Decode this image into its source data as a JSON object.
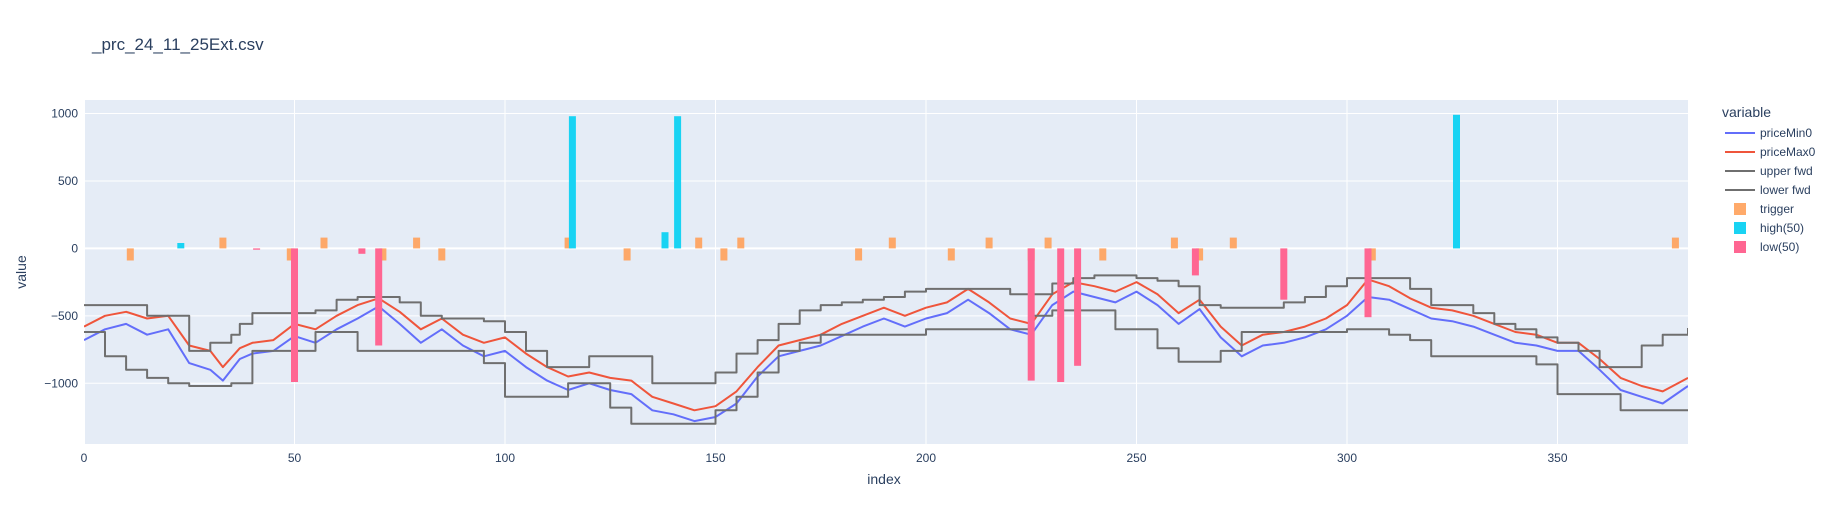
{
  "chart_data": {
    "type": "line",
    "title": "_prc_24_11_25Ext.csv",
    "xlabel": "index",
    "ylabel": "value",
    "xlim": [
      0,
      381
    ],
    "ylim": [
      -1450,
      1100
    ],
    "xticks": [
      0,
      50,
      100,
      150,
      200,
      250,
      300,
      350
    ],
    "yticks": [
      -1000,
      -500,
      0,
      500,
      1000
    ],
    "xtick_labels": [
      "0",
      "50",
      "100",
      "150",
      "200",
      "250",
      "300",
      "350"
    ],
    "ytick_labels": [
      "−1000",
      "−500",
      "0",
      "500",
      "1000"
    ],
    "grid": true,
    "legend_title": "variable",
    "legend_position": "right",
    "series": [
      {
        "name": "priceMin0",
        "kind": "line",
        "color": "#636efa",
        "x": [
          0,
          5,
          10,
          15,
          20,
          25,
          30,
          33,
          37,
          40,
          45,
          50,
          55,
          60,
          65,
          70,
          75,
          80,
          85,
          90,
          95,
          100,
          105,
          110,
          115,
          120,
          125,
          130,
          135,
          140,
          145,
          150,
          155,
          160,
          165,
          170,
          175,
          180,
          185,
          190,
          195,
          200,
          205,
          210,
          215,
          220,
          225,
          230,
          235,
          240,
          245,
          250,
          255,
          260,
          265,
          270,
          275,
          280,
          285,
          290,
          295,
          300,
          305,
          310,
          315,
          320,
          325,
          330,
          335,
          340,
          345,
          350,
          355,
          360,
          365,
          370,
          375,
          381
        ],
        "y": [
          -680,
          -600,
          -560,
          -640,
          -600,
          -850,
          -900,
          -980,
          -820,
          -780,
          -760,
          -650,
          -700,
          -600,
          -520,
          -430,
          -560,
          -700,
          -600,
          -720,
          -800,
          -760,
          -880,
          -980,
          -1050,
          -1000,
          -1050,
          -1080,
          -1200,
          -1230,
          -1280,
          -1250,
          -1150,
          -950,
          -800,
          -760,
          -720,
          -650,
          -580,
          -520,
          -580,
          -520,
          -480,
          -380,
          -480,
          -600,
          -640,
          -420,
          -320,
          -360,
          -400,
          -320,
          -420,
          -560,
          -450,
          -660,
          -800,
          -720,
          -700,
          -660,
          -600,
          -500,
          -360,
          -380,
          -450,
          -520,
          -540,
          -580,
          -640,
          -700,
          -720,
          -760,
          -760,
          -900,
          -1050,
          -1100,
          -1150,
          -1020
        ]
      },
      {
        "name": "priceMax0",
        "kind": "line",
        "color": "#ef553b",
        "x": [
          0,
          5,
          10,
          15,
          20,
          25,
          30,
          33,
          37,
          40,
          45,
          50,
          55,
          60,
          65,
          70,
          75,
          80,
          85,
          90,
          95,
          100,
          105,
          110,
          115,
          120,
          125,
          130,
          135,
          140,
          145,
          150,
          155,
          160,
          165,
          170,
          175,
          180,
          185,
          190,
          195,
          200,
          205,
          210,
          215,
          220,
          225,
          230,
          235,
          240,
          245,
          250,
          255,
          260,
          265,
          270,
          275,
          280,
          285,
          290,
          295,
          300,
          305,
          310,
          315,
          320,
          325,
          330,
          335,
          340,
          345,
          350,
          355,
          360,
          365,
          370,
          375,
          381
        ],
        "y": [
          -580,
          -500,
          -470,
          -520,
          -500,
          -720,
          -760,
          -880,
          -740,
          -700,
          -680,
          -560,
          -600,
          -500,
          -420,
          -370,
          -470,
          -600,
          -520,
          -640,
          -700,
          -660,
          -780,
          -880,
          -950,
          -920,
          -960,
          -980,
          -1100,
          -1150,
          -1200,
          -1170,
          -1060,
          -880,
          -720,
          -680,
          -640,
          -560,
          -500,
          -440,
          -500,
          -440,
          -400,
          -300,
          -400,
          -520,
          -560,
          -340,
          -250,
          -280,
          -320,
          -250,
          -340,
          -480,
          -380,
          -580,
          -720,
          -640,
          -620,
          -580,
          -520,
          -420,
          -230,
          -280,
          -370,
          -440,
          -460,
          -500,
          -560,
          -620,
          -640,
          -700,
          -700,
          -820,
          -960,
          -1020,
          -1060,
          -960
        ]
      },
      {
        "name": "upper fwd",
        "kind": "step",
        "color": "#6f6f6f",
        "x": [
          0,
          10,
          15,
          25,
          30,
          35,
          37,
          40,
          50,
          55,
          60,
          65,
          70,
          75,
          80,
          85,
          90,
          95,
          100,
          105,
          110,
          115,
          120,
          125,
          135,
          140,
          145,
          150,
          155,
          160,
          165,
          170,
          175,
          180,
          185,
          190,
          195,
          200,
          205,
          210,
          215,
          220,
          225,
          230,
          235,
          240,
          245,
          250,
          255,
          260,
          265,
          270,
          275,
          280,
          285,
          290,
          295,
          300,
          305,
          310,
          315,
          320,
          325,
          330,
          335,
          340,
          345,
          350,
          355,
          360,
          365,
          370,
          375,
          381
        ],
        "y": [
          -420,
          -420,
          -500,
          -760,
          -700,
          -640,
          -560,
          -480,
          -480,
          -460,
          -380,
          -360,
          -360,
          -400,
          -500,
          -520,
          -520,
          -540,
          -620,
          -760,
          -880,
          -880,
          -800,
          -800,
          -1000,
          -1000,
          -1000,
          -920,
          -780,
          -680,
          -560,
          -460,
          -420,
          -400,
          -380,
          -360,
          -320,
          -300,
          -300,
          -300,
          -300,
          -340,
          -340,
          -260,
          -220,
          -200,
          -200,
          -220,
          -240,
          -280,
          -420,
          -440,
          -440,
          -440,
          -400,
          -360,
          -280,
          -220,
          -220,
          -220,
          -300,
          -420,
          -420,
          -480,
          -560,
          -600,
          -660,
          -700,
          -760,
          -880,
          -880,
          -720,
          -640,
          -590
        ]
      },
      {
        "name": "lower fwd",
        "kind": "step",
        "color": "#6f6f6f",
        "x": [
          0,
          5,
          10,
          15,
          20,
          25,
          30,
          35,
          40,
          45,
          50,
          55,
          60,
          65,
          70,
          75,
          80,
          85,
          90,
          95,
          100,
          105,
          110,
          115,
          120,
          125,
          130,
          135,
          140,
          145,
          150,
          155,
          160,
          165,
          170,
          175,
          180,
          185,
          190,
          195,
          200,
          205,
          210,
          215,
          220,
          225,
          230,
          235,
          240,
          245,
          250,
          255,
          260,
          265,
          270,
          275,
          280,
          285,
          290,
          295,
          300,
          305,
          310,
          315,
          320,
          325,
          330,
          335,
          340,
          345,
          350,
          355,
          360,
          365,
          370,
          375,
          381
        ],
        "y": [
          -620,
          -800,
          -900,
          -960,
          -1000,
          -1020,
          -1020,
          -1000,
          -760,
          -760,
          -760,
          -620,
          -620,
          -760,
          -760,
          -760,
          -760,
          -760,
          -760,
          -850,
          -1100,
          -1100,
          -1100,
          -1000,
          -1000,
          -1180,
          -1300,
          -1300,
          -1300,
          -1300,
          -1200,
          -1100,
          -920,
          -760,
          -700,
          -640,
          -640,
          -640,
          -640,
          -640,
          -600,
          -600,
          -600,
          -600,
          -600,
          -500,
          -460,
          -460,
          -460,
          -600,
          -600,
          -740,
          -840,
          -840,
          -760,
          -620,
          -620,
          -620,
          -620,
          -620,
          -600,
          -600,
          -640,
          -680,
          -800,
          -800,
          -800,
          -800,
          -800,
          -860,
          -1080,
          -1080,
          -1080,
          -1200,
          -1200,
          -1200,
          -1200
        ]
      },
      {
        "name": "trigger",
        "kind": "bars",
        "color": "#ffa15a",
        "opacity": 0.9,
        "x": [
          11,
          33,
          49,
          57,
          71,
          79,
          85,
          115,
          129,
          146,
          152,
          156,
          184,
          192,
          206,
          215,
          225,
          229,
          242,
          259,
          265,
          273,
          306,
          378
        ],
        "y": [
          -90,
          80,
          -90,
          80,
          -90,
          80,
          -90,
          80,
          -90,
          80,
          -90,
          80,
          -90,
          80,
          -90,
          80,
          -90,
          80,
          -90,
          80,
          -90,
          80,
          -90,
          80
        ]
      },
      {
        "name": "high(50)",
        "kind": "bars",
        "color": "#19d3f3",
        "x": [
          23,
          116,
          138,
          141,
          326
        ],
        "y": [
          40,
          980,
          120,
          980,
          990
        ]
      },
      {
        "name": "low(50)",
        "kind": "bars",
        "color": "#ff6692",
        "x": [
          41,
          50,
          66,
          70,
          225,
          232,
          236,
          264,
          285,
          305
        ],
        "y": [
          -10,
          -990,
          -40,
          -720,
          -980,
          -990,
          -870,
          -200,
          -380,
          -510
        ]
      }
    ]
  }
}
